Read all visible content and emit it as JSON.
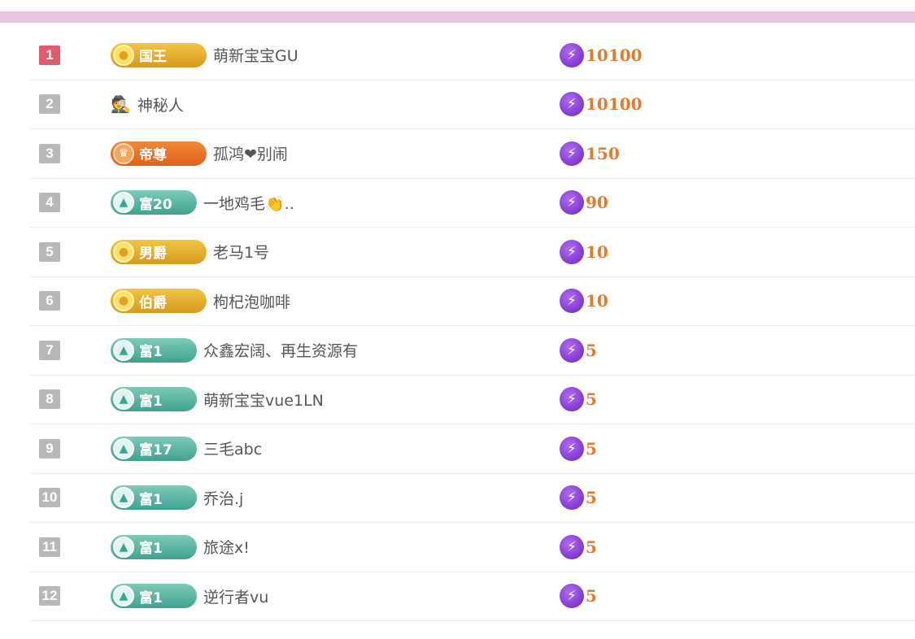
{
  "colors": {
    "accent_bar": "#ebc3e2",
    "top_rank": "#e35a6a",
    "rank": "#b8b8b8",
    "value": "#e47a2a"
  },
  "rows": [
    {
      "rank": "1",
      "badge": {
        "type": "gold",
        "label": "国王",
        "icon": "crown-coin-icon"
      },
      "name": "萌新宝宝GU",
      "value": "10100"
    },
    {
      "rank": "2",
      "badge": null,
      "avatar_icon": "mystery-person-icon",
      "name": "神秘人",
      "value": "10100"
    },
    {
      "rank": "3",
      "badge": {
        "type": "orange",
        "label": "帝尊",
        "icon": "emperor-icon"
      },
      "name": "孤鸿❤别闹",
      "value": "150"
    },
    {
      "rank": "4",
      "badge": {
        "type": "teal",
        "label": "富20",
        "icon": "wealth-drop-icon"
      },
      "name": "一地鸡毛👏..",
      "value": "90"
    },
    {
      "rank": "5",
      "badge": {
        "type": "gold",
        "label": "男爵",
        "icon": "crown-coin-icon"
      },
      "name": "老马1号",
      "value": "10"
    },
    {
      "rank": "6",
      "badge": {
        "type": "gold",
        "label": "伯爵",
        "icon": "crown-coin-icon"
      },
      "name": "枸杞泡咖啡",
      "value": "10"
    },
    {
      "rank": "7",
      "badge": {
        "type": "teal",
        "label": "富1",
        "icon": "wealth-drop-icon"
      },
      "name": "众鑫宏阔、再生资源有",
      "value": "5"
    },
    {
      "rank": "8",
      "badge": {
        "type": "teal",
        "label": "富1",
        "icon": "wealth-drop-icon"
      },
      "name": "萌新宝宝vue1LN",
      "value": "5"
    },
    {
      "rank": "9",
      "badge": {
        "type": "teal",
        "label": "富17",
        "icon": "wealth-drop-icon"
      },
      "name": "三毛abc",
      "value": "5"
    },
    {
      "rank": "10",
      "badge": {
        "type": "teal",
        "label": "富1",
        "icon": "wealth-drop-icon"
      },
      "name": "乔治.j",
      "value": "5"
    },
    {
      "rank": "11",
      "badge": {
        "type": "teal",
        "label": "富1",
        "icon": "wealth-drop-icon"
      },
      "name": "旅途x!",
      "value": "5"
    },
    {
      "rank": "12",
      "badge": {
        "type": "teal",
        "label": "富1",
        "icon": "wealth-drop-icon"
      },
      "name": "逆行者vu",
      "value": "5"
    }
  ]
}
